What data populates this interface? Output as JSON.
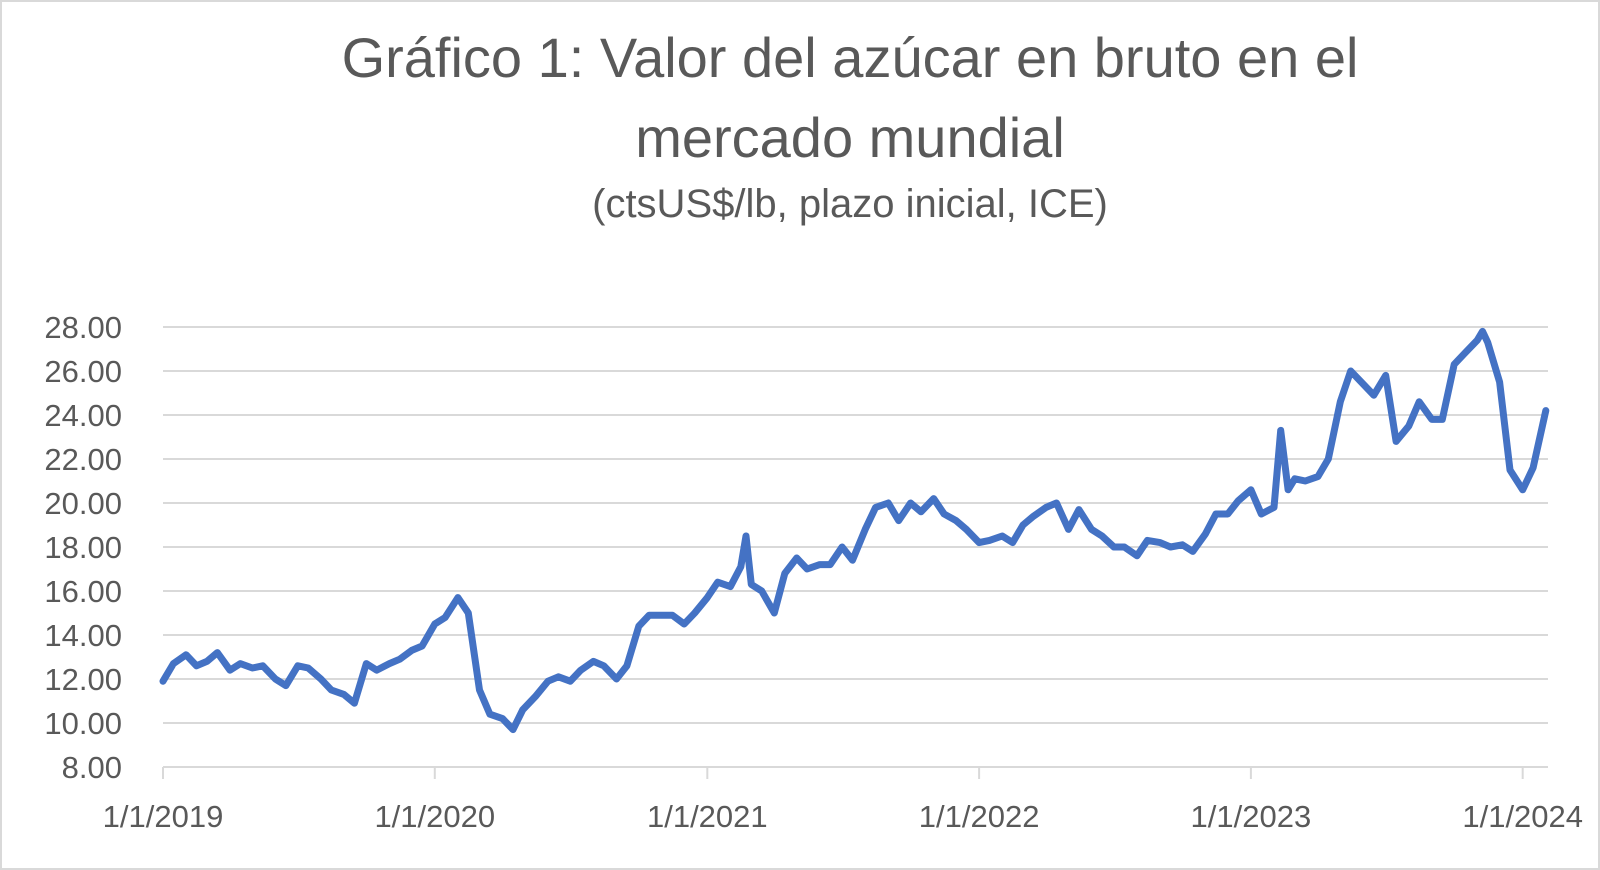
{
  "chart_data": {
    "type": "line",
    "title_line1": "Gráfico 1: Valor del azúcar en bruto en el",
    "title_line2": "mercado mundial",
    "subtitle": "(ctsUS$/lb, plazo inicial, ICE)",
    "xlabel": "",
    "ylabel": "",
    "ylim": [
      8,
      28
    ],
    "xlim": [
      "2019-01-01",
      "2024-02-04"
    ],
    "y_ticks": [
      "8.00",
      "10.00",
      "12.00",
      "14.00",
      "16.00",
      "18.00",
      "20.00",
      "22.00",
      "24.00",
      "26.00",
      "28.00"
    ],
    "x_ticks": [
      {
        "date": "2019-01-01",
        "label": "1/1/2019"
      },
      {
        "date": "2020-01-01",
        "label": "1/1/2020"
      },
      {
        "date": "2021-01-01",
        "label": "1/1/2021"
      },
      {
        "date": "2022-01-01",
        "label": "1/1/2022"
      },
      {
        "date": "2023-01-01",
        "label": "1/1/2023"
      },
      {
        "date": "2024-01-01",
        "label": "1/1/2024"
      }
    ],
    "grid": "horizontal",
    "line_color": "#4472c4",
    "series": [
      {
        "x": [
          "2019-01-01",
          "2019-01-15",
          "2019-02-01",
          "2019-02-15",
          "2019-03-01",
          "2019-03-15",
          "2019-04-01",
          "2019-04-15",
          "2019-05-01",
          "2019-05-15",
          "2019-06-01",
          "2019-06-15",
          "2019-07-01",
          "2019-07-15",
          "2019-08-01",
          "2019-08-15",
          "2019-09-01",
          "2019-09-15",
          "2019-10-01",
          "2019-10-15",
          "2019-11-01",
          "2019-11-15",
          "2019-12-01",
          "2019-12-15",
          "2020-01-01",
          "2020-01-15",
          "2020-02-01",
          "2020-02-15",
          "2020-03-01",
          "2020-03-15",
          "2020-04-01",
          "2020-04-15",
          "2020-04-28",
          "2020-05-15",
          "2020-06-01",
          "2020-06-15",
          "2020-07-01",
          "2020-07-15",
          "2020-08-01",
          "2020-08-15",
          "2020-09-01",
          "2020-09-15",
          "2020-10-01",
          "2020-10-15",
          "2020-11-01",
          "2020-11-15",
          "2020-12-01",
          "2020-12-15",
          "2021-01-01",
          "2021-01-15",
          "2021-02-01",
          "2021-02-15",
          "2021-02-22",
          "2021-03-01",
          "2021-03-15",
          "2021-04-01",
          "2021-04-15",
          "2021-05-01",
          "2021-05-15",
          "2021-06-01",
          "2021-06-15",
          "2021-07-01",
          "2021-07-15",
          "2021-08-01",
          "2021-08-15",
          "2021-09-01",
          "2021-09-15",
          "2021-10-01",
          "2021-10-15",
          "2021-11-01",
          "2021-11-15",
          "2021-12-01",
          "2021-12-15",
          "2022-01-01",
          "2022-01-15",
          "2022-02-01",
          "2022-02-15",
          "2022-03-01",
          "2022-03-15",
          "2022-04-01",
          "2022-04-15",
          "2022-05-01",
          "2022-05-15",
          "2022-06-01",
          "2022-06-15",
          "2022-07-01",
          "2022-07-15",
          "2022-08-01",
          "2022-08-15",
          "2022-09-01",
          "2022-09-15",
          "2022-10-01",
          "2022-10-15",
          "2022-11-01",
          "2022-11-15",
          "2022-12-01",
          "2022-12-15",
          "2023-01-01",
          "2023-01-15",
          "2023-02-01",
          "2023-02-10",
          "2023-02-20",
          "2023-03-01",
          "2023-03-15",
          "2023-04-01",
          "2023-04-15",
          "2023-05-01",
          "2023-05-15",
          "2023-06-01",
          "2023-06-15",
          "2023-07-01",
          "2023-07-15",
          "2023-08-01",
          "2023-08-15",
          "2023-09-01",
          "2023-09-15",
          "2023-10-01",
          "2023-10-15",
          "2023-11-01",
          "2023-11-08",
          "2023-11-15",
          "2023-12-01",
          "2023-12-15",
          "2024-01-01",
          "2024-01-15",
          "2024-02-01"
        ],
        "y": [
          11.9,
          12.7,
          13.1,
          12.6,
          12.8,
          13.2,
          12.4,
          12.7,
          12.5,
          12.6,
          12.0,
          11.7,
          12.6,
          12.5,
          12.0,
          11.5,
          11.3,
          10.9,
          12.7,
          12.4,
          12.7,
          12.9,
          13.3,
          13.5,
          14.5,
          14.8,
          15.7,
          15.0,
          11.5,
          10.4,
          10.2,
          9.7,
          10.6,
          11.2,
          11.9,
          12.1,
          11.9,
          12.4,
          12.8,
          12.6,
          12.0,
          12.6,
          14.4,
          14.9,
          14.9,
          14.9,
          14.5,
          15.0,
          15.7,
          16.4,
          16.2,
          17.1,
          18.5,
          16.3,
          16.0,
          15.0,
          16.8,
          17.5,
          17.0,
          17.2,
          17.2,
          18.0,
          17.4,
          18.8,
          19.8,
          20.0,
          19.2,
          20.0,
          19.6,
          20.2,
          19.5,
          19.2,
          18.8,
          18.2,
          18.3,
          18.5,
          18.2,
          19.0,
          19.4,
          19.8,
          20.0,
          18.8,
          19.7,
          18.8,
          18.5,
          18.0,
          18.0,
          17.6,
          18.3,
          18.2,
          18.0,
          18.1,
          17.8,
          18.6,
          19.5,
          19.5,
          20.1,
          20.6,
          19.5,
          19.8,
          23.3,
          20.6,
          21.1,
          21.0,
          21.2,
          22.0,
          24.6,
          26.0,
          25.4,
          24.9,
          25.8,
          22.8,
          23.5,
          24.6,
          23.8,
          23.8,
          26.3,
          26.8,
          27.4,
          27.8,
          27.3,
          25.5,
          21.5,
          20.6,
          21.6,
          24.2
        ]
      }
    ]
  }
}
